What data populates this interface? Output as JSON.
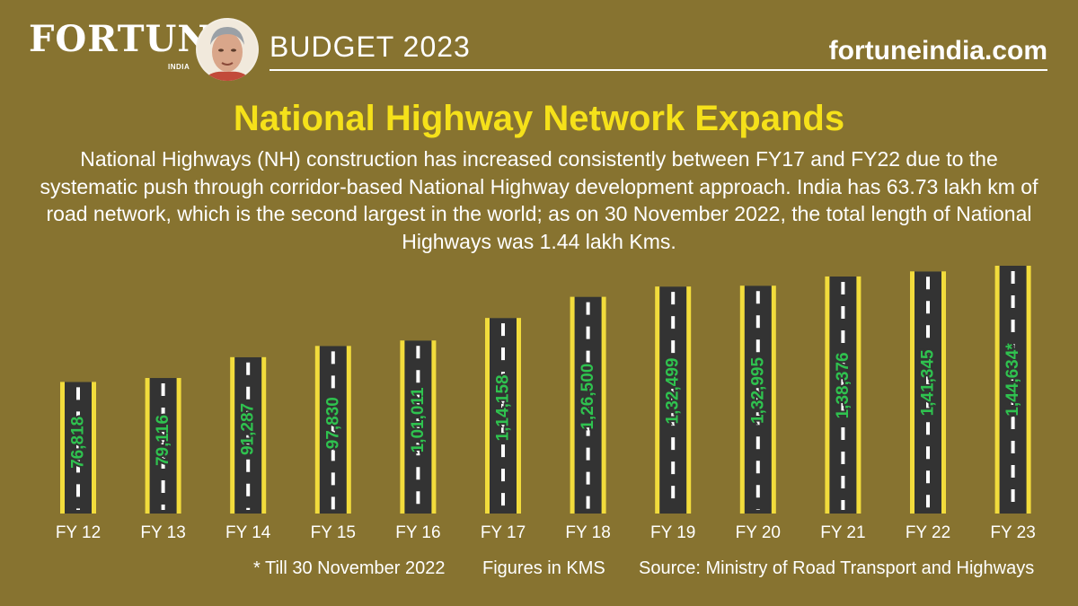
{
  "header": {
    "brand": "FORTUNE",
    "brand_sub": "INDIA",
    "section": "BUDGET 2023",
    "site": "fortuneindia.com"
  },
  "colors": {
    "background": "#877330",
    "title": "#f5e11a",
    "road": "#333333",
    "road_edge": "#f2dc3c",
    "value_label": "#2fc24f"
  },
  "title": "National Highway Network Expands",
  "description": "National Highways (NH) construction has increased consistently between FY17 and FY22 due to the systematic push through corridor-based National Highway development approach. India has 63.73 lakh km of road network, which is the second largest in the world; as on 30 November 2022, the total length of National Highways was 1.44 lakh Kms.",
  "chart_data": {
    "type": "bar",
    "categories": [
      "FY 12",
      "FY 13",
      "FY 14",
      "FY 15",
      "FY 16",
      "FY 17",
      "FY 18",
      "FY 19",
      "FY 20",
      "FY 21",
      "FY 22",
      "FY 23"
    ],
    "values": [
      76818,
      79116,
      91287,
      97830,
      101011,
      114158,
      126500,
      132499,
      132995,
      138376,
      141345,
      144634
    ],
    "value_labels": [
      "76,818",
      "79,116",
      "91,287",
      "97,830",
      "1,01,011",
      "1,14,158",
      "1,26,500",
      "1,32,499",
      "1,32,995",
      "1,38,376",
      "1,41,345",
      "1,44,634*"
    ],
    "unit": "KMS"
  },
  "footer": {
    "note": "* Till 30 November 2022",
    "units": "Figures in KMS",
    "source": "Source: Ministry of Road Transport and Highways"
  }
}
